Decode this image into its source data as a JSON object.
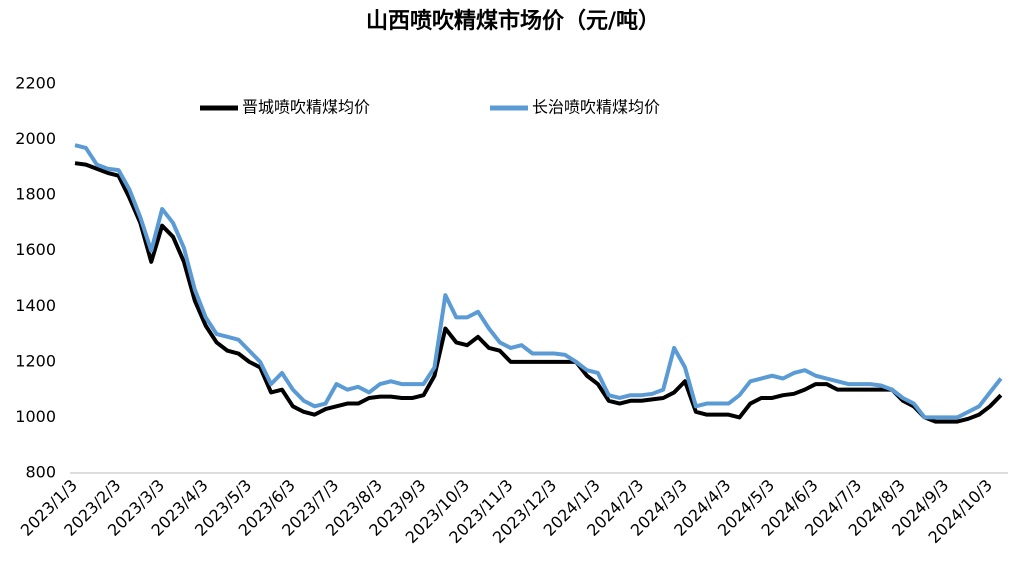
{
  "chart_data": {
    "type": "line",
    "title": "山西喷吹精煤市场价（元/吨）",
    "categories": [
      "2023/1/3",
      null,
      null,
      null,
      "2023/2/3",
      null,
      null,
      null,
      "2023/3/3",
      null,
      null,
      null,
      "2023/4/3",
      null,
      null,
      null,
      "2023/5/3",
      null,
      null,
      null,
      "2023/6/3",
      null,
      null,
      null,
      "2023/7/3",
      null,
      null,
      null,
      "2023/8/3",
      null,
      null,
      null,
      "2023/9/3",
      null,
      null,
      null,
      "2023/10/3",
      null,
      null,
      null,
      "2023/11/3",
      null,
      null,
      null,
      "2023/12/3",
      null,
      null,
      null,
      "2024/1/3",
      null,
      null,
      null,
      "2024/2/3",
      null,
      null,
      null,
      "2024/3/3",
      null,
      null,
      null,
      "2024/4/3",
      null,
      null,
      null,
      "2024/5/3",
      null,
      null,
      null,
      "2024/6/3",
      null,
      null,
      null,
      "2024/7/3",
      null,
      null,
      null,
      "2024/8/3",
      null,
      null,
      null,
      "2024/9/3",
      null,
      null,
      null,
      "2024/10/3",
      null
    ],
    "series": [
      {
        "name": "晋城喷吹精煤均价",
        "color": "#000000",
        "values": [
          1915,
          1910,
          1895,
          1880,
          1870,
          1790,
          1700,
          1560,
          1690,
          1650,
          1560,
          1420,
          1330,
          1270,
          1240,
          1230,
          1200,
          1180,
          1090,
          1100,
          1040,
          1020,
          1010,
          1030,
          1040,
          1050,
          1050,
          1070,
          1075,
          1075,
          1070,
          1070,
          1080,
          1150,
          1320,
          1270,
          1260,
          1290,
          1250,
          1240,
          1200,
          1200,
          1200,
          1200,
          1200,
          1200,
          1200,
          1150,
          1120,
          1060,
          1050,
          1060,
          1060,
          1065,
          1070,
          1090,
          1130,
          1020,
          1010,
          1010,
          1010,
          1000,
          1050,
          1070,
          1070,
          1080,
          1085,
          1100,
          1120,
          1120,
          1100,
          1100,
          1100,
          1100,
          1100,
          1100,
          1060,
          1040,
          1000,
          985,
          985,
          985,
          995,
          1010,
          1040,
          1080
        ]
      },
      {
        "name": "长治喷吹精煤均价",
        "color": "#5b9bd5",
        "values": [
          1980,
          1970,
          1910,
          1895,
          1890,
          1820,
          1720,
          1600,
          1750,
          1700,
          1610,
          1460,
          1360,
          1300,
          1290,
          1280,
          1240,
          1200,
          1120,
          1160,
          1100,
          1060,
          1040,
          1050,
          1120,
          1100,
          1110,
          1090,
          1120,
          1130,
          1120,
          1120,
          1120,
          1180,
          1440,
          1360,
          1360,
          1380,
          1320,
          1270,
          1250,
          1260,
          1230,
          1230,
          1230,
          1225,
          1200,
          1170,
          1160,
          1080,
          1070,
          1080,
          1080,
          1085,
          1100,
          1250,
          1180,
          1040,
          1050,
          1050,
          1050,
          1080,
          1130,
          1140,
          1150,
          1140,
          1160,
          1170,
          1150,
          1140,
          1130,
          1120,
          1120,
          1120,
          1115,
          1100,
          1070,
          1050,
          1000,
          1000,
          1000,
          1000,
          1020,
          1040,
          1090,
          1140
        ]
      }
    ],
    "ylim": [
      800,
      2200
    ],
    "yticks": [
      800,
      1000,
      1200,
      1400,
      1600,
      1800,
      2000,
      2200
    ],
    "grid": false,
    "legend": "top"
  }
}
